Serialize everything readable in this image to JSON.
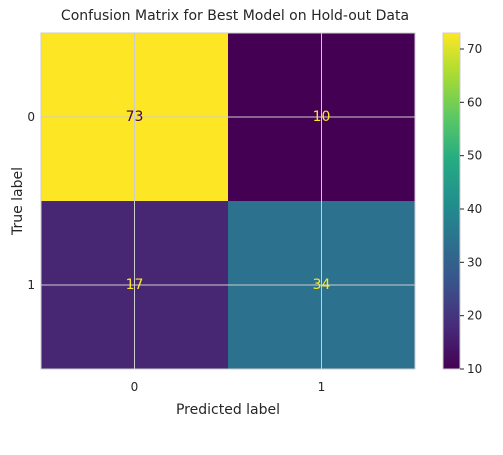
{
  "chart_data": {
    "type": "heatmap",
    "title": "Confusion Matrix for Best Model on Hold-out Data",
    "xlabel": "Predicted label",
    "ylabel": "True label",
    "x_categories": [
      "0",
      "1"
    ],
    "y_categories": [
      "0",
      "1"
    ],
    "values": [
      [
        73,
        10
      ],
      [
        17,
        34
      ]
    ],
    "colormap": "viridis",
    "colorbar": {
      "range": [
        10,
        73
      ],
      "ticks": [
        "10",
        "20",
        "30",
        "40",
        "50",
        "60",
        "70"
      ]
    },
    "grid": true,
    "cell_text_colors": {
      "high": "#440154",
      "low": "#fde725"
    }
  }
}
